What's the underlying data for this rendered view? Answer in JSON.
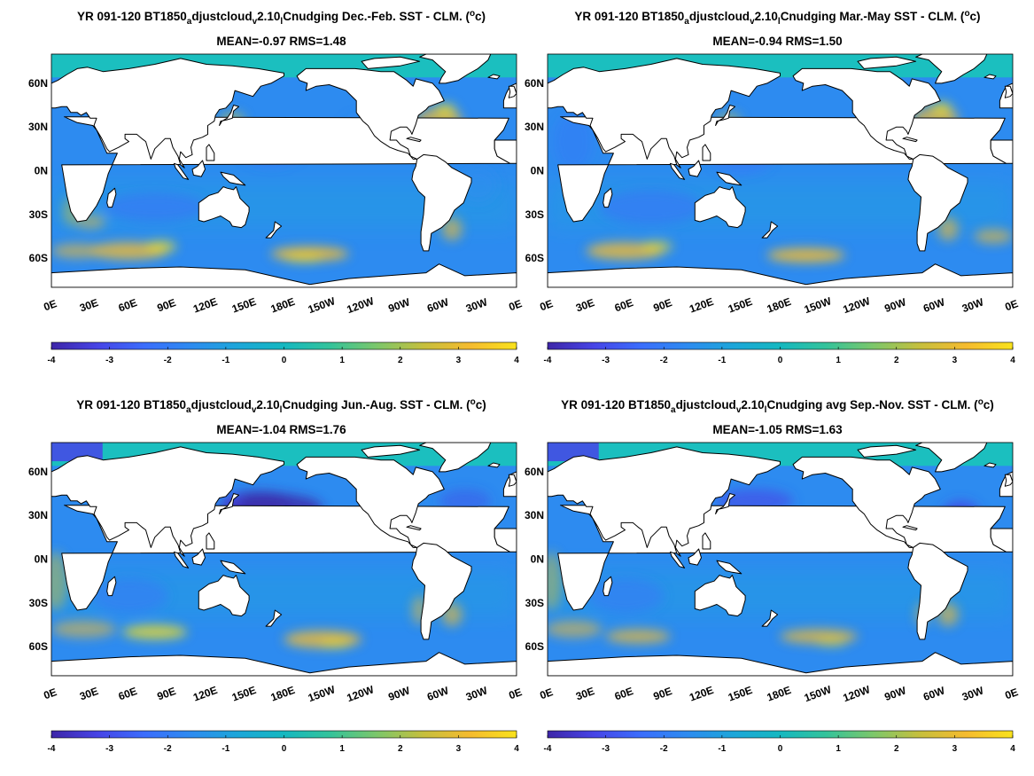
{
  "figure": {
    "background": "#ffffff"
  },
  "chart_data": [
    {
      "type": "heatmap",
      "title": "YR 091-120 BT1850_adjustcloud_v2.10_lCnudging  Dec.-Feb. SST - CLM. (°c)",
      "title_parts": {
        "prefix": "YR 091-120 BT1850",
        "sub1": "a",
        "mid1": "djustcloud",
        "sub2": "v",
        "mid2": "2.10",
        "sub3": "l",
        "suffix": "Cnudging  Dec.-Feb. SST - CLM. (",
        "sup": "o",
        "unit_tail": "c)"
      },
      "subtitle": "MEAN=-0.97   RMS=1.48",
      "mean": -0.97,
      "rms": 1.48,
      "x_ticks": [
        "0E",
        "30E",
        "60E",
        "90E",
        "120E",
        "150E",
        "180E",
        "150W",
        "120W",
        "90W",
        "60W",
        "30W",
        "0E"
      ],
      "y_ticks": [
        "60N",
        "30N",
        "0N",
        "30S",
        "60S"
      ],
      "colorbar": {
        "ticks": [
          "-4",
          "-3",
          "-2",
          "-1",
          "0",
          "1",
          "2",
          "3",
          "4"
        ],
        "range": [
          -4,
          4
        ]
      }
    },
    {
      "type": "heatmap",
      "title": "YR 091-120 BT1850_adjustcloud_v2.10_lCnudging Mar.-May SST - CLM. (°c)",
      "title_parts": {
        "prefix": "YR 091-120 BT1850",
        "sub1": "a",
        "mid1": "djustcloud",
        "sub2": "v",
        "mid2": "2.10",
        "sub3": "l",
        "suffix": "Cnudging Mar.-May SST - CLM. (",
        "sup": "o",
        "unit_tail": "c)"
      },
      "subtitle": "MEAN=-0.94   RMS=1.50",
      "mean": -0.94,
      "rms": 1.5,
      "x_ticks": [
        "0E",
        "30E",
        "60E",
        "90E",
        "120E",
        "150E",
        "180E",
        "150W",
        "120W",
        "90W",
        "60W",
        "30W",
        "0E"
      ],
      "y_ticks": [
        "60N",
        "30N",
        "0N",
        "30S",
        "60S"
      ],
      "colorbar": {
        "ticks": [
          "-4",
          "-3",
          "-2",
          "-1",
          "0",
          "1",
          "2",
          "3",
          "4"
        ],
        "range": [
          -4,
          4
        ]
      }
    },
    {
      "type": "heatmap",
      "title": "YR 091-120 BT1850_adjustcloud_v2.10_lCnudging Jun.-Aug. SST - CLM. (°c)",
      "title_parts": {
        "prefix": "YR 091-120 BT1850",
        "sub1": "a",
        "mid1": "djustcloud",
        "sub2": "v",
        "mid2": "2.10",
        "sub3": "l",
        "suffix": "Cnudging Jun.-Aug. SST - CLM. (",
        "sup": "o",
        "unit_tail": "c)"
      },
      "subtitle": "MEAN=-1.04   RMS=1.76",
      "mean": -1.04,
      "rms": 1.76,
      "x_ticks": [
        "0E",
        "30E",
        "60E",
        "90E",
        "120E",
        "150E",
        "180E",
        "150W",
        "120W",
        "90W",
        "60W",
        "30W",
        "0E"
      ],
      "y_ticks": [
        "60N",
        "30N",
        "0N",
        "30S",
        "60S"
      ],
      "colorbar": {
        "ticks": [
          "-4",
          "-3",
          "-2",
          "-1",
          "0",
          "1",
          "2",
          "3",
          "4"
        ],
        "range": [
          -4,
          4
        ]
      }
    },
    {
      "type": "heatmap",
      "title": "YR 091-120 BT1850_adjustcloud_v2.10_lCnudging avg Sep.-Nov. SST - CLM. (°c)",
      "title_parts": {
        "prefix": "YR 091-120 BT1850",
        "sub1": "a",
        "mid1": "djustcloud",
        "sub2": "v",
        "mid2": "2.10",
        "sub3": "l",
        "suffix": "Cnudging avg Sep.-Nov. SST - CLM. (",
        "sup": "o",
        "unit_tail": "c)"
      },
      "subtitle": "MEAN=-1.05   RMS=1.63",
      "mean": -1.05,
      "rms": 1.63,
      "x_ticks": [
        "0E",
        "30E",
        "60E",
        "90E",
        "120E",
        "150E",
        "180E",
        "150W",
        "120W",
        "90W",
        "60W",
        "30W",
        "0E"
      ],
      "y_ticks": [
        "60N",
        "30N",
        "0N",
        "30S",
        "60S"
      ],
      "colorbar": {
        "ticks": [
          "-4",
          "-3",
          "-2",
          "-1",
          "0",
          "1",
          "2",
          "3",
          "4"
        ],
        "range": [
          -4,
          4
        ]
      }
    }
  ],
  "colors": {
    "colormap": [
      "#3e26a8",
      "#4744e6",
      "#3b6dfc",
      "#2d8bf0",
      "#1ca6d9",
      "#15b8c0",
      "#34c39a",
      "#7cc76a",
      "#c6bf3d",
      "#f5bb2f",
      "#f9e21c"
    ],
    "land": "#ffffff",
    "coast": "#000000",
    "sea_ice": "#1bbfbf"
  }
}
